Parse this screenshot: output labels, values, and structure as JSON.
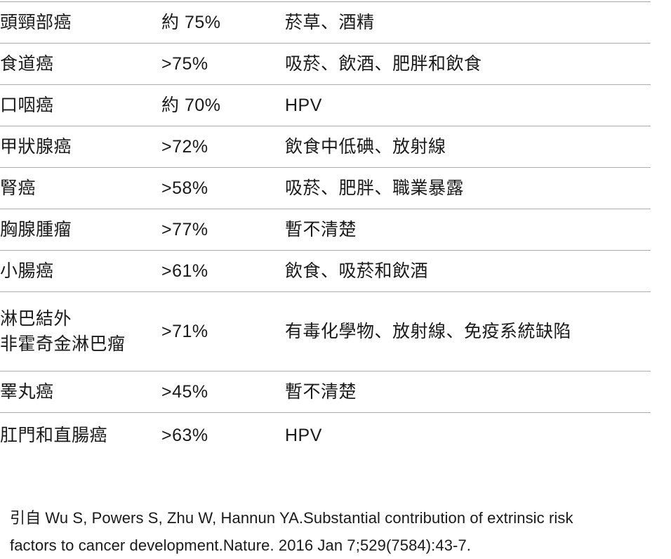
{
  "page": {
    "background_color": "#ffffff",
    "text_color": "#1a1a1a",
    "divider_color": "#adadad"
  },
  "table": {
    "rows": [
      {
        "cancer_type": "頭頸部癌",
        "percentage": "約 75%",
        "risk_factors": "菸草、酒精"
      },
      {
        "cancer_type": "食道癌",
        "percentage": ">75%",
        "risk_factors": "吸菸、飲酒、肥胖和飲食"
      },
      {
        "cancer_type": "口咽癌",
        "percentage": "約 70%",
        "risk_factors": "HPV"
      },
      {
        "cancer_type": "甲狀腺癌",
        "percentage": ">72%",
        "risk_factors": "飲食中低碘、放射線"
      },
      {
        "cancer_type": "腎癌",
        "percentage": ">58%",
        "risk_factors": "吸菸、肥胖、職業暴露"
      },
      {
        "cancer_type": "胸腺腫瘤",
        "percentage": ">77%",
        "risk_factors": "暫不清楚"
      },
      {
        "cancer_type": "小腸癌",
        "percentage": ">61%",
        "risk_factors": "飲食、吸菸和飲酒"
      },
      {
        "cancer_type": "淋巴結外\n非霍奇金淋巴瘤",
        "percentage": ">71%",
        "risk_factors": "有毒化學物、放射線、免疫系統缺陷"
      },
      {
        "cancer_type": "睪丸癌",
        "percentage": ">45%",
        "risk_factors": "暫不清楚"
      },
      {
        "cancer_type": "肛門和直腸癌",
        "percentage": ">63%",
        "risk_factors": "HPV"
      }
    ]
  },
  "citation": "引自 Wu S, Powers S, Zhu W, Hannun YA.Substantial contribution of extrinsic risk factors to cancer development.Nature. 2016 Jan 7;529(7584):43-7."
}
